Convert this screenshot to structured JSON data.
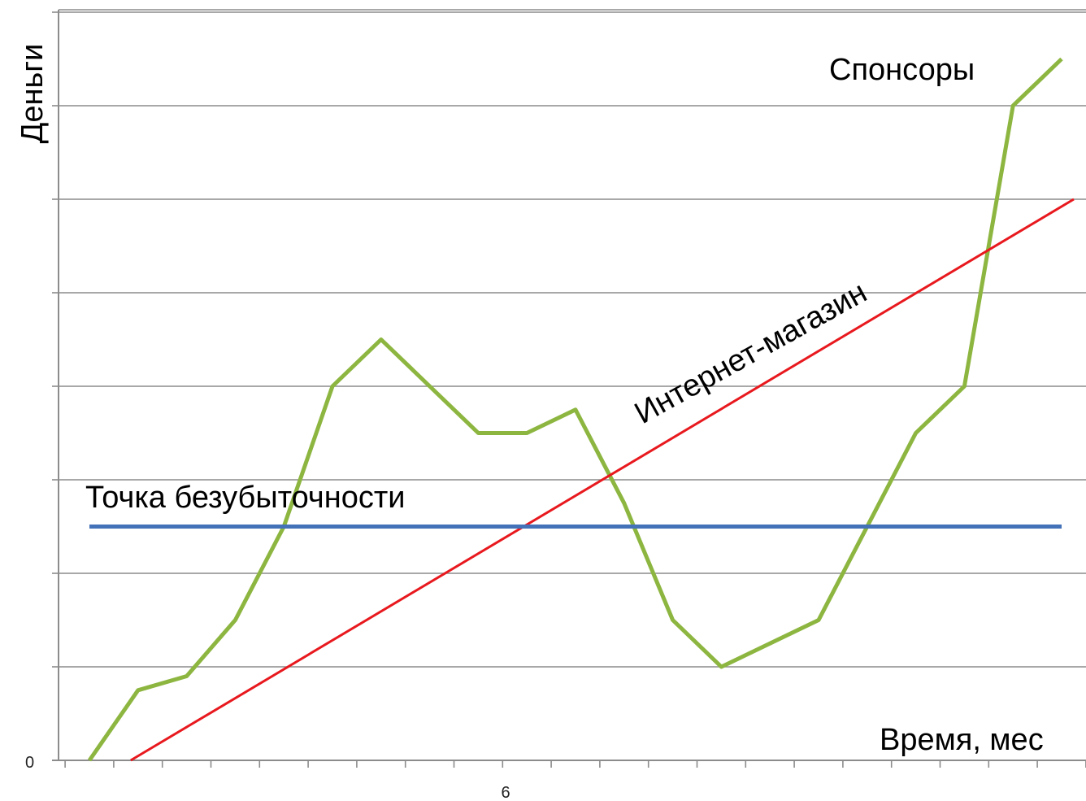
{
  "chart_data": {
    "type": "line",
    "ylabel": "Деньги",
    "xlabel": "Время, мес",
    "x_tick_labels": [
      {
        "x": 6,
        "label": "6"
      }
    ],
    "y_tick_labels": [
      {
        "y": 0,
        "label": "0"
      }
    ],
    "xlim": [
      0,
      21
    ],
    "ylim": [
      0,
      8
    ],
    "grid": true,
    "series": [
      {
        "name": "Спонсоры",
        "color": "#8db641",
        "x": [
          0,
          1,
          2,
          3,
          4,
          5,
          6,
          7,
          8,
          9,
          10,
          11,
          12,
          13,
          14,
          15,
          16,
          17,
          18,
          19,
          20
        ],
        "y": [
          0,
          0.75,
          0.9,
          1.5,
          2.5,
          4.0,
          4.5,
          4.0,
          3.5,
          3.5,
          3.75,
          2.75,
          1.5,
          1.0,
          1.25,
          1.5,
          2.5,
          3.5,
          4.0,
          7.0,
          7.5
        ]
      },
      {
        "name": "Интернет-магазин",
        "color": "#e8191e",
        "x": [
          0.85,
          20.25
        ],
        "y": [
          0,
          6.0
        ]
      },
      {
        "name": "Точка безубыточности",
        "color": "#4472b8",
        "x": [
          0,
          20
        ],
        "y": [
          2.5,
          2.5
        ]
      }
    ]
  }
}
